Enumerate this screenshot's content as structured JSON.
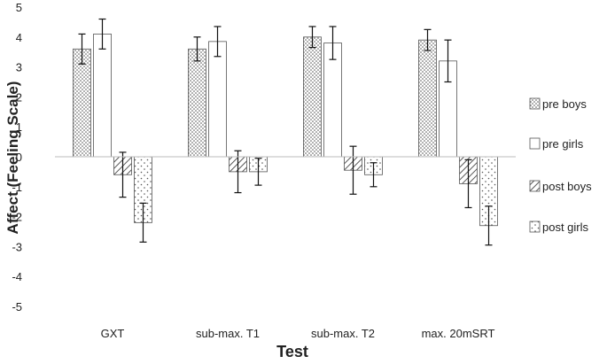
{
  "chart_data": {
    "type": "bar",
    "title": "",
    "xlabel": "Test",
    "ylabel": "Affect (Feeling Scale)",
    "ylim": [
      -5,
      5
    ],
    "yticks": [
      5,
      4,
      3,
      2,
      1,
      0,
      -1,
      -2,
      -3,
      -4,
      -5
    ],
    "categories": [
      "GXT",
      "sub-max. T1",
      "sub-max. T2",
      "max. 20mSRT"
    ],
    "grid": false,
    "legend_position": "right",
    "series": [
      {
        "name": "pre boys",
        "pattern": "dots",
        "values": [
          3.6,
          3.6,
          4.0,
          3.9
        ],
        "errors": [
          0.5,
          0.4,
          0.35,
          0.35
        ]
      },
      {
        "name": "pre girls",
        "pattern": "none",
        "values": [
          4.1,
          3.85,
          3.8,
          3.2
        ],
        "errors": [
          0.5,
          0.5,
          0.55,
          0.7
        ]
      },
      {
        "name": "post boys",
        "pattern": "diagonal",
        "values": [
          -0.6,
          -0.5,
          -0.45,
          -0.9
        ],
        "errors": [
          0.75,
          0.7,
          0.8,
          0.8
        ]
      },
      {
        "name": "post girls",
        "pattern": "dots-sparse",
        "values": [
          -2.2,
          -0.5,
          -0.6,
          -2.3
        ],
        "errors": [
          0.65,
          0.45,
          0.4,
          0.65
        ]
      }
    ]
  }
}
